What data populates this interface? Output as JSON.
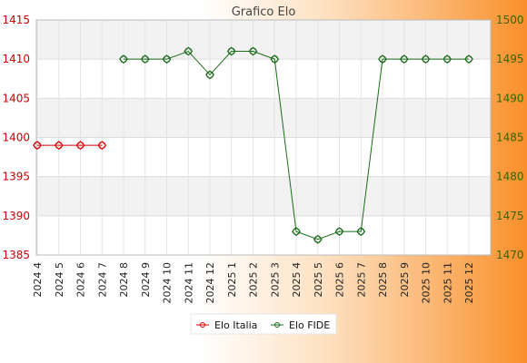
{
  "chart_data": {
    "type": "line",
    "title": "Grafico Elo",
    "categories": [
      "2024 4",
      "2024 5",
      "2024 6",
      "2024 7",
      "2024 8",
      "2024 9",
      "2024 10",
      "2024 11",
      "2024 12",
      "2025 1",
      "2025 2",
      "2025 3",
      "2025 4",
      "2025 5",
      "2025 6",
      "2025 7",
      "2025 8",
      "2025 9",
      "2025 10",
      "2025 11",
      "2025 12"
    ],
    "left_axis": {
      "ylim": [
        1385,
        1415
      ],
      "ticks": [
        1385,
        1390,
        1395,
        1400,
        1405,
        1410,
        1415
      ],
      "color": "#cc0000"
    },
    "right_axis": {
      "ylim": [
        1470,
        1500
      ],
      "ticks": [
        1470,
        1475,
        1480,
        1485,
        1490,
        1495,
        1500
      ],
      "color": "#336600"
    },
    "series": [
      {
        "name": "Elo Italia",
        "axis": "left",
        "color": "#dd0000",
        "values": [
          1399,
          1399,
          1399,
          1399,
          null,
          null,
          null,
          null,
          null,
          null,
          null,
          null,
          null,
          null,
          null,
          null,
          null,
          null,
          null,
          null,
          null
        ]
      },
      {
        "name": "Elo FIDE",
        "axis": "right",
        "color": "#1a6b1a",
        "values": [
          null,
          null,
          null,
          null,
          1495,
          1495,
          1495,
          1496,
          1493,
          1496,
          1496,
          1495,
          1473,
          1472,
          1473,
          1473,
          1495,
          1495,
          1495,
          1495,
          1495
        ]
      }
    ],
    "grid": true,
    "legend_position": "bottom-center"
  }
}
